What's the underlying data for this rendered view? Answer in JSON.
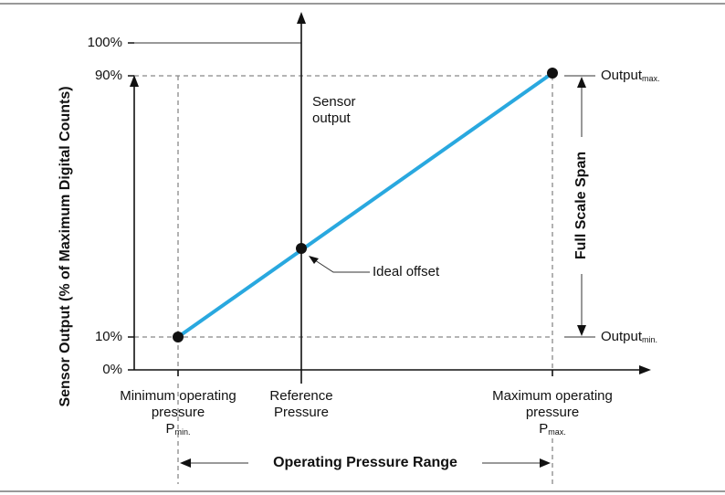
{
  "y_axis": {
    "title": "Sensor Output (% of Maximum Digital Counts)",
    "ticks": [
      "100%",
      "90%",
      "10%",
      "0%"
    ]
  },
  "x_axis": {
    "title": "Operating Pressure Range",
    "labels": [
      {
        "lines": [
          "Minimum operating",
          "pressure"
        ],
        "symbol": "P",
        "subscript": "min."
      },
      {
        "lines": [
          "Reference",
          "Pressure"
        ]
      },
      {
        "lines": [
          "Maximum operating",
          "pressure"
        ],
        "symbol": "P",
        "subscript": "max."
      }
    ]
  },
  "annotations": {
    "sensor_output": [
      "Sensor",
      "output"
    ],
    "ideal_offset": "Ideal offset",
    "output_max": {
      "text": "Output",
      "subscript": "max."
    },
    "output_min": {
      "text": "Output",
      "subscript": "min."
    },
    "full_scale_span": "Full Scale Span"
  }
}
